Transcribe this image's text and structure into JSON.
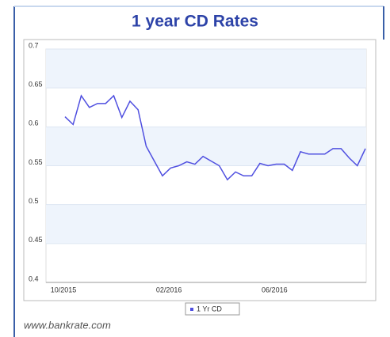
{
  "chart_data": {
    "type": "line",
    "title": "1 year CD Rates",
    "source": "www.bankrate.com",
    "categories": [
      "10/2015",
      null,
      null,
      null,
      null,
      null,
      null,
      null,
      null,
      null,
      null,
      null,
      null,
      "02/2016",
      null,
      null,
      null,
      null,
      null,
      null,
      null,
      null,
      null,
      null,
      null,
      null,
      "06/2016",
      null,
      null,
      null,
      null,
      null,
      null,
      null,
      null,
      null,
      null,
      null
    ],
    "series": [
      {
        "name": "1 Yr CD",
        "color": "#4f4fe0",
        "values": [
          0.613,
          0.603,
          0.64,
          0.625,
          0.63,
          0.63,
          0.64,
          0.612,
          0.633,
          0.622,
          0.575,
          0.556,
          0.537,
          0.547,
          0.55,
          0.555,
          0.552,
          0.562,
          0.556,
          0.55,
          0.532,
          0.542,
          0.537,
          0.537,
          0.553,
          0.55,
          0.552,
          0.552,
          0.544,
          0.568,
          0.565,
          0.565,
          0.565,
          0.572,
          0.572,
          0.56,
          0.55,
          0.572
        ]
      }
    ],
    "ylim": [
      0.4,
      0.7
    ],
    "yticks": [
      0.4,
      0.45,
      0.5,
      0.55,
      0.6,
      0.65,
      0.7
    ],
    "grid": true,
    "legend": "bottom"
  }
}
